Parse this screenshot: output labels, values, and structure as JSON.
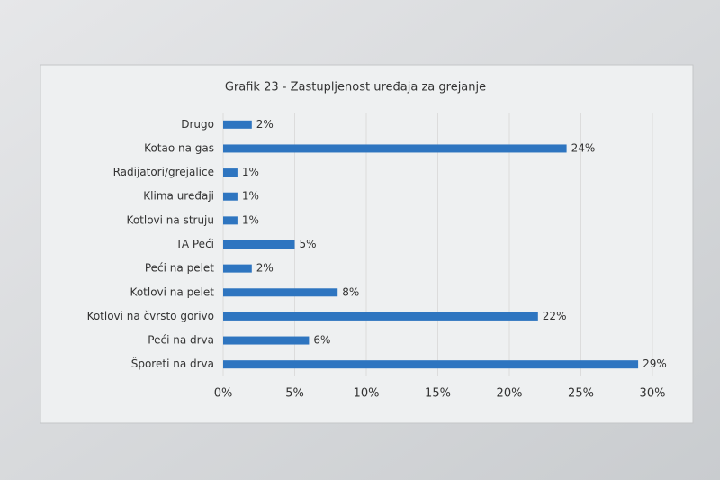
{
  "chart_data": {
    "type": "barh",
    "title": "Grafik 23 - Zastupljenost uređaja za grejanje",
    "categories": [
      "Drugo",
      "Kotao na gas",
      "Radijatori/grejalice",
      "Klima uređaji",
      "Kotlovi na struju",
      "TA Peći",
      "Peći na pelet",
      "Kotlovi na pelet",
      "Kotlovi na čvrsto gorivo",
      "Peći na drva",
      "Šporeti na drva"
    ],
    "values": [
      2,
      24,
      1,
      1,
      1,
      5,
      2,
      8,
      22,
      6,
      29
    ],
    "value_labels": [
      "2%",
      "24%",
      "1%",
      "1%",
      "1%",
      "5%",
      "2%",
      "8%",
      "22%",
      "6%",
      "29%"
    ],
    "color": "#2e75c0",
    "xlim": [
      0,
      30
    ],
    "xticks": [
      {
        "value": 0,
        "label": "0%"
      },
      {
        "value": 5,
        "label": "5%"
      },
      {
        "value": 10,
        "label": "10%"
      },
      {
        "value": 15,
        "label": "15%"
      },
      {
        "value": 20,
        "label": "20%"
      },
      {
        "value": 25,
        "label": "25%"
      },
      {
        "value": 30,
        "label": "30%"
      }
    ],
    "grid": true
  }
}
